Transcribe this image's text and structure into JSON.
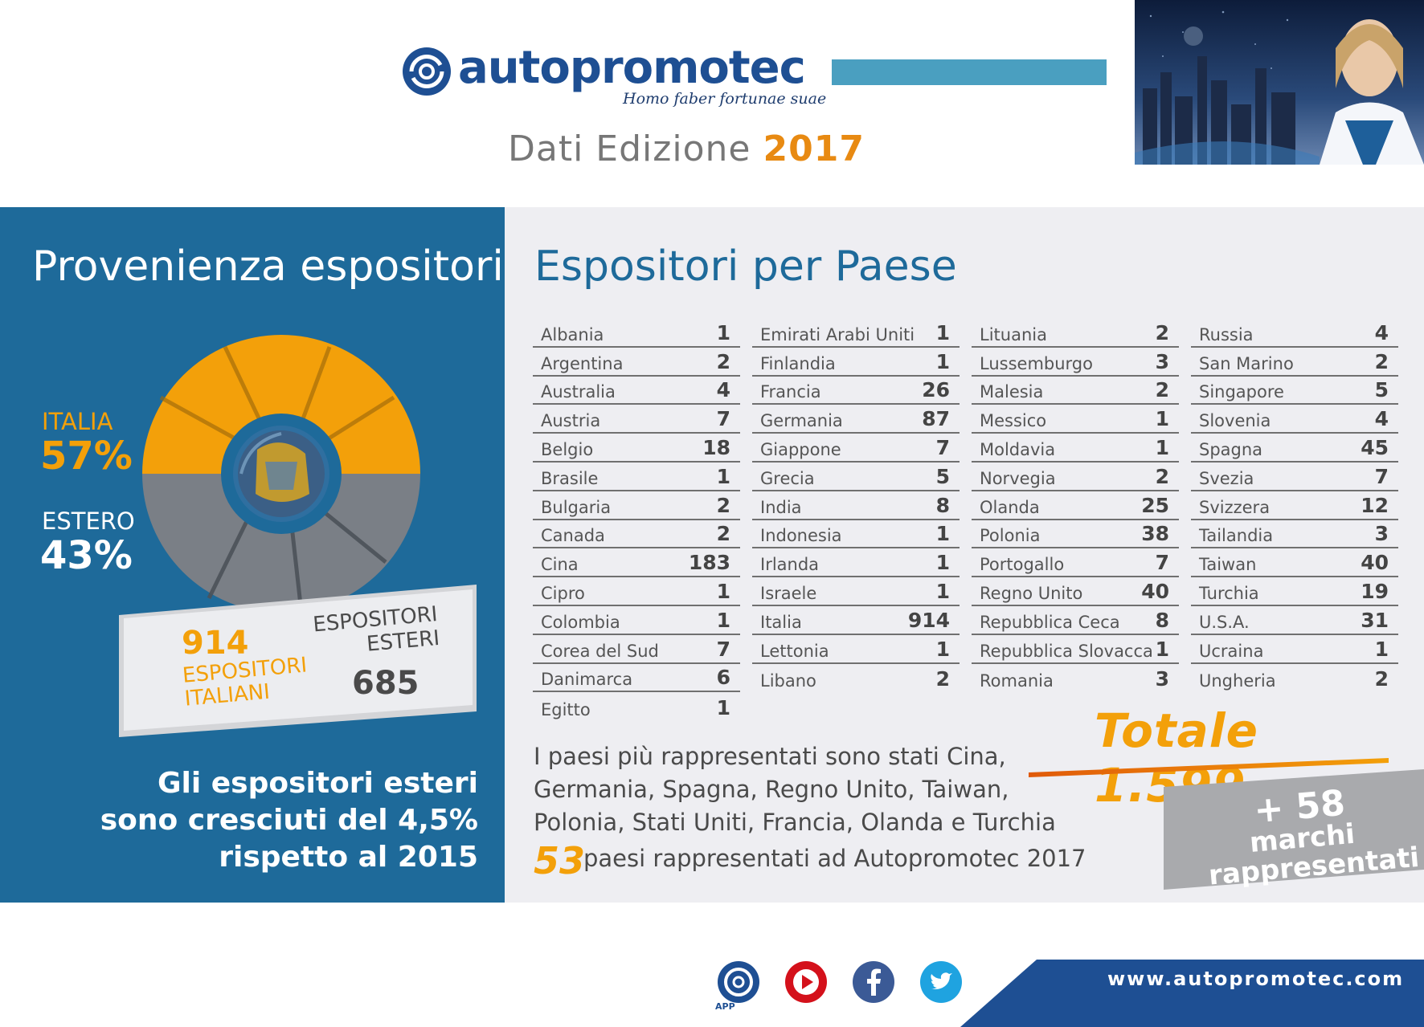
{
  "header": {
    "brand": "autopromotec",
    "tagline": "Homo faber fortunae suae",
    "edition_label": "Dati Edizione",
    "edition_year": "2017"
  },
  "left": {
    "title": "Provenienza espositori",
    "italia_label": "ITALIA",
    "italia_pct": "57%",
    "estero_label": "ESTERO",
    "estero_pct": "43%",
    "italian_count": "914",
    "italian_label_1": "ESPOSITORI",
    "italian_label_2": "ITALIANI",
    "foreign_label_1": "ESPOSITORI",
    "foreign_label_2": "ESTERI",
    "foreign_count": "685",
    "growth_1": "Gli espositori esteri",
    "growth_2": "sono cresciuti del 4,5%",
    "growth_3": "rispetto al 2015"
  },
  "right": {
    "title": "Espositori per Paese",
    "columns": [
      [
        [
          "Albania",
          "1"
        ],
        [
          "Argentina",
          "2"
        ],
        [
          "Australia",
          "4"
        ],
        [
          "Austria",
          "7"
        ],
        [
          "Belgio",
          "18"
        ],
        [
          "Brasile",
          "1"
        ],
        [
          "Bulgaria",
          "2"
        ],
        [
          "Canada",
          "2"
        ],
        [
          "Cina",
          "183"
        ],
        [
          "Cipro",
          "1"
        ],
        [
          "Colombia",
          "1"
        ],
        [
          "Corea del Sud",
          "7"
        ],
        [
          "Danimarca",
          "6"
        ],
        [
          "Egitto",
          "1"
        ]
      ],
      [
        [
          "Emirati Arabi Uniti",
          "1"
        ],
        [
          "Finlandia",
          "1"
        ],
        [
          "Francia",
          "26"
        ],
        [
          "Germania",
          "87"
        ],
        [
          "Giappone",
          "7"
        ],
        [
          "Grecia",
          "5"
        ],
        [
          "India",
          "8"
        ],
        [
          "Indonesia",
          "1"
        ],
        [
          "Irlanda",
          "1"
        ],
        [
          "Israele",
          "1"
        ],
        [
          "Italia",
          "914"
        ],
        [
          "Lettonia",
          "1"
        ],
        [
          "Libano",
          "2"
        ]
      ],
      [
        [
          "Lituania",
          "2"
        ],
        [
          "Lussemburgo",
          "3"
        ],
        [
          "Malesia",
          "2"
        ],
        [
          "Messico",
          "1"
        ],
        [
          "Moldavia",
          "1"
        ],
        [
          "Norvegia",
          "2"
        ],
        [
          "Olanda",
          "25"
        ],
        [
          "Polonia",
          "38"
        ],
        [
          "Portogallo",
          "7"
        ],
        [
          "Regno Unito",
          "40"
        ],
        [
          "Repubblica Ceca",
          "8"
        ],
        [
          "Repubblica Slovacca",
          "1"
        ],
        [
          "Romania",
          "3"
        ]
      ],
      [
        [
          "Russia",
          "4"
        ],
        [
          "San Marino",
          "2"
        ],
        [
          "Singapore",
          "5"
        ],
        [
          "Slovenia",
          "4"
        ],
        [
          "Spagna",
          "45"
        ],
        [
          "Svezia",
          "7"
        ],
        [
          "Svizzera",
          "12"
        ],
        [
          "Tailandia",
          "3"
        ],
        [
          "Taiwan",
          "40"
        ],
        [
          "Turchia",
          "19"
        ],
        [
          "U.S.A.",
          "31"
        ],
        [
          "Ucraina",
          "1"
        ],
        [
          "Ungheria",
          "2"
        ]
      ]
    ],
    "totale": "Totale 1.599",
    "brands_1": "+ 58",
    "brands_2": "marchi",
    "brands_3": "rappresentati",
    "note_1": "I paesi più rappresentati sono stati Cina,",
    "note_2": "Germania, Spagna, Regno Unito, Taiwan,",
    "note_3": "Polonia, Stati Uniti, Francia, Olanda e Turchia",
    "countries_count": "53",
    "countries_text": "paesi rappresentati ad Autopromotec 2017"
  },
  "footer": {
    "app_label": "APP",
    "url": "www.autopromotec.com",
    "icons": [
      "autopromotec-app-icon",
      "youtube-icon",
      "facebook-icon",
      "twitter-icon"
    ]
  },
  "colors": {
    "brand_blue": "#1e4f93",
    "panel_blue": "#1e6a9a",
    "accent_orange": "#f3a00a",
    "grey_panel": "#eeeef2"
  }
}
